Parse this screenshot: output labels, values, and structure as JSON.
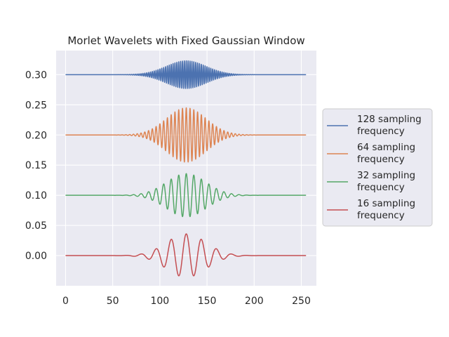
{
  "chart_data": {
    "type": "line",
    "title": "Morlet Wavelets with Fixed Gaussian Window",
    "xlabel": "",
    "ylabel": "",
    "xlim": [
      -10,
      266
    ],
    "ylim": [
      -0.05,
      0.34
    ],
    "x_ticks": [
      0,
      50,
      100,
      150,
      200,
      250
    ],
    "y_ticks": [
      0.0,
      0.05,
      0.1,
      0.15,
      0.2,
      0.25,
      0.3
    ],
    "x_tick_labels": [
      "0",
      "50",
      "100",
      "150",
      "200",
      "250"
    ],
    "y_tick_labels": [
      "0.00",
      "0.05",
      "0.10",
      "0.15",
      "0.20",
      "0.25",
      "0.30"
    ],
    "grid": true,
    "legend_position": "center-right outside",
    "x_range": [
      0,
      255
    ],
    "gaussian_center": 128,
    "gaussian_sigma": 21,
    "series": [
      {
        "name": "128 sampling frequency",
        "legend_lines": [
          "128 sampling",
          "frequency"
        ],
        "offset": 0.3,
        "amplitude": 0.023,
        "period": 2,
        "color": "#4c72b0"
      },
      {
        "name": "64 sampling frequency",
        "legend_lines": [
          "64 sampling",
          "frequency"
        ],
        "offset": 0.2,
        "amplitude": 0.045,
        "period": 4,
        "color": "#dd8452"
      },
      {
        "name": "32 sampling frequency",
        "legend_lines": [
          "32 sampling",
          "frequency"
        ],
        "offset": 0.1,
        "amplitude": 0.036,
        "period": 8,
        "color": "#55a868"
      },
      {
        "name": "16 sampling frequency",
        "legend_lines": [
          "16 sampling",
          "frequency"
        ],
        "offset": 0.0,
        "amplitude": 0.036,
        "period": 16,
        "color": "#c44e52"
      }
    ]
  }
}
